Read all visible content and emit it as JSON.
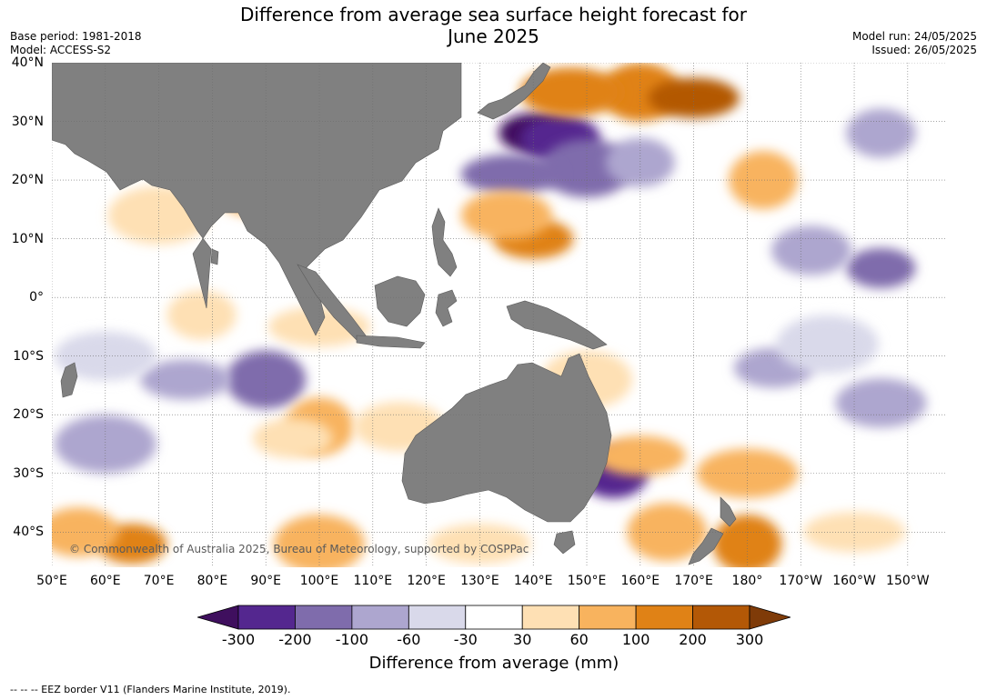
{
  "title_line1": "Difference from average sea surface height forecast for",
  "title_line2": "June 2025",
  "base_period": "Base period: 1981-2018",
  "model": "Model: ACCESS-S2",
  "model_run": "Model run: 24/05/2025",
  "issued": "Issued: 26/05/2025",
  "copyright": "© Commonwealth of Australia 2025, Bureau of Meteorology, supported by COSPPac",
  "footnote": "--  --  -- EEZ border V11 (Flanders Marine Institute, 2019).",
  "colors": {
    "land": "#808080",
    "ocean_neutral": "#ffffff",
    "grid": "#6e6e6e"
  },
  "latitude_labels": [
    {
      "lat": 40,
      "text": "40°N"
    },
    {
      "lat": 30,
      "text": "30°N"
    },
    {
      "lat": 20,
      "text": "20°N"
    },
    {
      "lat": 10,
      "text": "10°N"
    },
    {
      "lat": 0,
      "text": "0°"
    },
    {
      "lat": -10,
      "text": "10°S"
    },
    {
      "lat": -20,
      "text": "20°S"
    },
    {
      "lat": -30,
      "text": "30°S"
    },
    {
      "lat": -40,
      "text": "40°S"
    }
  ],
  "longitude_labels": [
    {
      "lon": 50,
      "text": "50°E"
    },
    {
      "lon": 60,
      "text": "60°E"
    },
    {
      "lon": 70,
      "text": "70°E"
    },
    {
      "lon": 80,
      "text": "80°E"
    },
    {
      "lon": 90,
      "text": "90°E"
    },
    {
      "lon": 100,
      "text": "100°E"
    },
    {
      "lon": 110,
      "text": "110°E"
    },
    {
      "lon": 120,
      "text": "120°E"
    },
    {
      "lon": 130,
      "text": "130°E"
    },
    {
      "lon": 140,
      "text": "140°E"
    },
    {
      "lon": 150,
      "text": "150°E"
    },
    {
      "lon": 160,
      "text": "160°E"
    },
    {
      "lon": 170,
      "text": "170°E"
    },
    {
      "lon": 180,
      "text": "180°"
    },
    {
      "lon": 190,
      "text": "170°W"
    },
    {
      "lon": 200,
      "text": "160°W"
    },
    {
      "lon": 210,
      "text": "150°W"
    }
  ],
  "colorbar": {
    "label": "Difference from average (mm)",
    "ticks": [
      "-300",
      "-200",
      "-100",
      "-60",
      "-30",
      "30",
      "60",
      "100",
      "200",
      "300"
    ],
    "colors": [
      "#3f0f5e",
      "#54278f",
      "#7f6cac",
      "#ada6cf",
      "#d9d9ea",
      "#ffffff",
      "#fee0b4",
      "#f8b35e",
      "#e08216",
      "#b35806",
      "#7f3b08"
    ]
  },
  "anomaly_regions": [
    {
      "lon": 140,
      "lat": 28,
      "level": 0
    },
    {
      "lon": 145,
      "lat": 27,
      "level": 1
    },
    {
      "lon": 150,
      "lat": 22,
      "level": 2
    },
    {
      "lon": 136,
      "lat": 21,
      "level": 2
    },
    {
      "lon": 160,
      "lat": 23,
      "level": 3
    },
    {
      "lon": 160,
      "lat": 35,
      "level": 8
    },
    {
      "lon": 170,
      "lat": 34,
      "level": 9
    },
    {
      "lon": 147,
      "lat": 35,
      "level": 8
    },
    {
      "lon": 183,
      "lat": 20,
      "level": 7
    },
    {
      "lon": 140,
      "lat": 10,
      "level": 8
    },
    {
      "lon": 135,
      "lat": 14,
      "level": 7
    },
    {
      "lon": 70,
      "lat": 14,
      "level": 6
    },
    {
      "lon": 95,
      "lat": 14,
      "level": 6
    },
    {
      "lon": 88,
      "lat": 18,
      "level": 7
    },
    {
      "lon": 80,
      "lat": 0,
      "level": 5
    },
    {
      "lon": 100,
      "lat": -5,
      "level": 6
    },
    {
      "lon": 78,
      "lat": -3,
      "level": 6
    },
    {
      "lon": 90,
      "lat": -14,
      "level": 2
    },
    {
      "lon": 75,
      "lat": -14,
      "level": 3
    },
    {
      "lon": 60,
      "lat": -10,
      "level": 4
    },
    {
      "lon": 100,
      "lat": -22,
      "level": 7
    },
    {
      "lon": 95,
      "lat": -24,
      "level": 6
    },
    {
      "lon": 115,
      "lat": -22,
      "level": 6
    },
    {
      "lon": 60,
      "lat": -25,
      "level": 3
    },
    {
      "lon": 65,
      "lat": -42,
      "level": 8
    },
    {
      "lon": 55,
      "lat": -40,
      "level": 7
    },
    {
      "lon": 100,
      "lat": -42,
      "level": 7
    },
    {
      "lon": 130,
      "lat": -42,
      "level": 6
    },
    {
      "lon": 155,
      "lat": -30,
      "level": 1
    },
    {
      "lon": 165,
      "lat": -40,
      "level": 7
    },
    {
      "lon": 160,
      "lat": -27,
      "level": 7
    },
    {
      "lon": 180,
      "lat": -30,
      "level": 7
    },
    {
      "lon": 180,
      "lat": -42,
      "level": 8
    },
    {
      "lon": 185,
      "lat": -12,
      "level": 3
    },
    {
      "lon": 205,
      "lat": -18,
      "level": 3
    },
    {
      "lon": 195,
      "lat": -8,
      "level": 4
    },
    {
      "lon": 205,
      "lat": 5,
      "level": 2
    },
    {
      "lon": 192,
      "lat": 8,
      "level": 3
    },
    {
      "lon": 150,
      "lat": -14,
      "level": 6
    },
    {
      "lon": 200,
      "lat": -40,
      "level": 6
    },
    {
      "lon": 205,
      "lat": 28,
      "level": 3
    }
  ]
}
